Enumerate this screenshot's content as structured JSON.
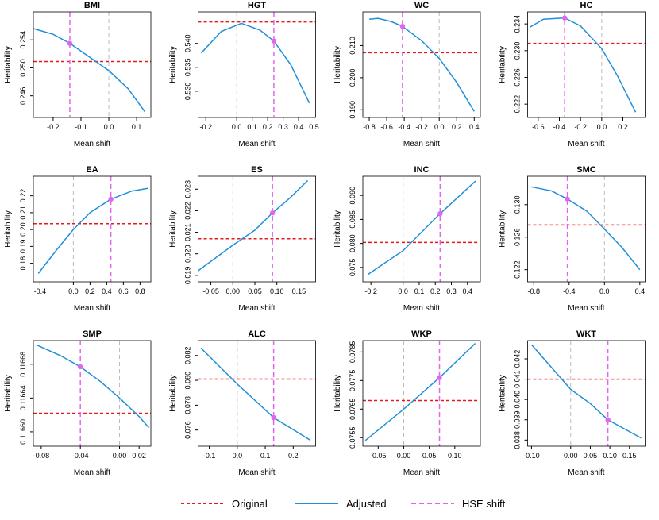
{
  "legend": [
    {
      "label": "Original",
      "color": "#e41a1c",
      "dash": "4,3"
    },
    {
      "label": "Adjusted",
      "color": "#1f8fd8",
      "dash": ""
    },
    {
      "label": "HSE shift",
      "color": "#e066ee",
      "dash": "6,4"
    }
  ],
  "reference_color": "#bbbbbb",
  "chart_data": [
    {
      "type": "line",
      "title": "BMI",
      "x_label": "Mean shift",
      "y_label": "Heritability",
      "xlim": [
        -0.271,
        0.151
      ],
      "ylim": [
        0.2429,
        0.258
      ],
      "xticks": [
        -0.2,
        -0.1,
        {
          "value": 0,
          "label": "0.0"
        },
        0.1
      ],
      "yticks": [
        0.246,
        {
          "value": 0.25,
          "label": "0.250"
        },
        0.254
      ],
      "x": [
        -0.27,
        -0.2,
        -0.14,
        -0.05,
        0,
        0.07,
        0.13
      ],
      "values": [
        0.2556,
        0.2548,
        0.2535,
        0.251,
        0.2496,
        0.247,
        0.2437
      ],
      "original": 0.2509,
      "reference_x": 0,
      "hse_x": -0.14,
      "hse_y": 0.2535
    },
    {
      "type": "line",
      "title": "HGT",
      "x_label": "Mean shift",
      "y_label": "Heritability",
      "xlim": [
        -0.25,
        0.51
      ],
      "ylim": [
        0.5245,
        0.5466
      ],
      "xticks": [
        -0.2,
        {
          "value": 0,
          "label": "0.0"
        },
        0.1,
        0.2,
        0.3,
        0.4,
        0.5
      ],
      "yticks": [
        {
          "value": 0.53,
          "label": "0.530"
        },
        0.535,
        {
          "value": 0.54,
          "label": "0.540"
        }
      ],
      "x": [
        -0.23,
        -0.1,
        0.03,
        0.15,
        0.24,
        0.35,
        0.47
      ],
      "values": [
        0.538,
        0.5425,
        0.5442,
        0.5428,
        0.5405,
        0.5355,
        0.5275
      ],
      "original": 0.5445,
      "reference_x": 0,
      "hse_x": 0.24,
      "hse_y": 0.5405
    },
    {
      "type": "line",
      "title": "WC",
      "x_label": "Mean shift",
      "y_label": "Heritability",
      "xlim": [
        -0.873,
        0.47
      ],
      "ylim": [
        0.1876,
        0.2205
      ],
      "xticks": [
        -0.8,
        -0.6,
        -0.4,
        -0.2,
        {
          "value": 0,
          "label": "0.0"
        },
        0.2,
        0.4
      ],
      "yticks": [
        {
          "value": 0.19,
          "label": "0.190"
        },
        {
          "value": 0.2,
          "label": "0.200"
        },
        {
          "value": 0.21,
          "label": "0.210"
        }
      ],
      "x": [
        -0.8,
        -0.7,
        -0.55,
        -0.42,
        -0.2,
        0,
        0.2,
        0.4
      ],
      "values": [
        0.2182,
        0.2185,
        0.2175,
        0.216,
        0.2115,
        0.206,
        0.1985,
        0.1895
      ],
      "original": 0.2078,
      "reference_x": 0,
      "hse_x": -0.42,
      "hse_y": 0.216
    },
    {
      "type": "line",
      "title": "HC",
      "x_label": "Mean shift",
      "y_label": "Heritability",
      "xlim": [
        -0.7,
        0.41
      ],
      "ylim": [
        0.22,
        0.2358
      ],
      "xticks": [
        -0.6,
        -0.4,
        -0.2,
        {
          "value": 0,
          "label": "0.0"
        },
        0.2
      ],
      "yticks": [
        0.222,
        0.226,
        {
          "value": 0.23,
          "label": "0.230"
        },
        0.234
      ],
      "x": [
        -0.68,
        -0.55,
        -0.35,
        -0.2,
        0,
        0.15,
        0.32
      ],
      "values": [
        0.2335,
        0.2347,
        0.2349,
        0.2337,
        0.2303,
        0.2262,
        0.2208
      ],
      "original": 0.2311,
      "reference_x": 0,
      "hse_x": -0.35,
      "hse_y": 0.2349
    },
    {
      "type": "line",
      "title": "EA",
      "x_label": "Mean shift",
      "y_label": "Heritability",
      "xlim": [
        -0.48,
        0.93
      ],
      "ylim": [
        0.169,
        0.2316
      ],
      "xticks": [
        -0.4,
        {
          "value": 0,
          "label": "0.0"
        },
        0.2,
        0.4,
        0.6,
        0.8
      ],
      "yticks": [
        0.18,
        0.19,
        {
          "value": 0.2,
          "label": "0.20"
        },
        0.21,
        0.22
      ],
      "x": [
        -0.42,
        -0.2,
        0,
        0.2,
        0.45,
        0.7,
        0.9
      ],
      "values": [
        0.174,
        0.188,
        0.2,
        0.21,
        0.218,
        0.2228,
        0.2245
      ],
      "original": 0.2035,
      "reference_x": 0,
      "hse_x": 0.45,
      "hse_y": 0.218
    },
    {
      "type": "line",
      "title": "ES",
      "x_label": "Mean shift",
      "y_label": "Heritability",
      "xlim": [
        -0.079,
        0.188
      ],
      "ylim": [
        0.0187,
        0.0236
      ],
      "xticks": [
        -0.05,
        {
          "value": 0,
          "label": "0.00"
        },
        0.05,
        {
          "value": 0.1,
          "label": "0.10"
        },
        0.15
      ],
      "yticks": [
        0.019,
        {
          "value": 0.02,
          "label": "0.020"
        },
        0.021,
        0.022,
        0.023
      ],
      "x": [
        -0.08,
        -0.04,
        0,
        0.05,
        0.09,
        0.13,
        0.17
      ],
      "values": [
        0.0192,
        0.0198,
        0.0204,
        0.0211,
        0.0219,
        0.0226,
        0.0234
      ],
      "original": 0.0207,
      "reference_x": 0,
      "hse_x": 0.09,
      "hse_y": 0.0219
    },
    {
      "type": "line",
      "title": "INC",
      "x_label": "Mean shift",
      "y_label": "Heritability",
      "xlim": [
        -0.25,
        0.48
      ],
      "ylim": [
        0.072,
        0.094
      ],
      "xticks": [
        -0.2,
        {
          "value": 0,
          "label": "0.0"
        },
        0.1,
        0.2,
        0.3,
        0.4
      ],
      "yticks": [
        0.075,
        {
          "value": 0.08,
          "label": "0.080"
        },
        0.085,
        {
          "value": 0.09,
          "label": "0.090"
        }
      ],
      "x": [
        -0.22,
        0,
        0.23,
        0.45
      ],
      "values": [
        0.0735,
        0.0785,
        0.0862,
        0.093
      ],
      "original": 0.0802,
      "reference_x": 0,
      "hse_x": 0.23,
      "hse_y": 0.0862
    },
    {
      "type": "line",
      "title": "SMC",
      "x_label": "Mean shift",
      "y_label": "Heritability",
      "xlim": [
        -0.87,
        0.46
      ],
      "ylim": [
        0.1205,
        0.1335
      ],
      "xticks": [
        -0.8,
        -0.4,
        {
          "value": 0,
          "label": "0.0"
        },
        0.4
      ],
      "yticks": [
        0.122,
        0.126,
        {
          "value": 0.13,
          "label": "0.130"
        }
      ],
      "x": [
        -0.83,
        -0.6,
        -0.42,
        -0.2,
        0,
        0.2,
        0.4
      ],
      "values": [
        0.1322,
        0.1317,
        0.1307,
        0.1292,
        0.127,
        0.1247,
        0.122
      ],
      "original": 0.1275,
      "reference_x": 0,
      "hse_x": -0.42,
      "hse_y": 0.1307
    },
    {
      "type": "line",
      "title": "SMP",
      "x_label": "Mean shift",
      "y_label": "Heritability",
      "xlim": [
        -0.088,
        0.032
      ],
      "ylim": [
        0.116583,
        0.116708
      ],
      "xticks": [
        -0.08,
        -0.04,
        {
          "value": 0,
          "label": "0.00"
        },
        0.02
      ],
      "yticks": [
        {
          "value": 0.1166,
          "label": "0.11660"
        },
        0.11664,
        0.11668
      ],
      "x": [
        -0.085,
        -0.06,
        -0.04,
        -0.02,
        0,
        0.02,
        0.03
      ],
      "values": [
        0.116703,
        0.11669,
        0.116677,
        0.11666,
        0.11664,
        0.116618,
        0.116605
      ],
      "original": 0.116622,
      "reference_x": 0,
      "hse_x": -0.04,
      "hse_y": 0.116677
    },
    {
      "type": "line",
      "title": "ALC",
      "x_label": "Mean shift",
      "y_label": "Heritability",
      "xlim": [
        -0.14,
        0.28
      ],
      "ylim": [
        0.0747,
        0.0832
      ],
      "xticks": [
        -0.1,
        {
          "value": 0,
          "label": "0.0"
        },
        0.1,
        0.2
      ],
      "yticks": [
        0.076,
        0.078,
        {
          "value": 0.08,
          "label": "0.080"
        },
        0.082
      ],
      "x": [
        -0.13,
        0,
        0.13,
        0.26
      ],
      "values": [
        0.0826,
        0.0797,
        0.077,
        0.0752
      ],
      "original": 0.0801,
      "reference_x": 0,
      "hse_x": 0.13,
      "hse_y": 0.077
    },
    {
      "type": "line",
      "title": "WKP",
      "x_label": "Mean shift",
      "y_label": "Heritability",
      "xlim": [
        -0.08,
        0.15
      ],
      "ylim": [
        0.0752,
        0.0789
      ],
      "xticks": [
        -0.05,
        {
          "value": 0,
          "label": "0.00"
        },
        0.05,
        {
          "value": 0.1,
          "label": "0.10"
        }
      ],
      "yticks": [
        0.0755,
        0.0765,
        0.0775,
        0.0785
      ],
      "x": [
        -0.075,
        0,
        0.07,
        0.14
      ],
      "values": [
        0.0754,
        0.0765,
        0.0776,
        0.0788
      ],
      "original": 0.0768,
      "reference_x": 0,
      "hse_x": 0.07,
      "hse_y": 0.0776
    },
    {
      "type": "line",
      "title": "WKT",
      "x_label": "Mean shift",
      "y_label": "Heritability",
      "xlim": [
        -0.11,
        0.19
      ],
      "ylim": [
        0.0377,
        0.0429
      ],
      "xticks": [
        {
          "value": -0.1,
          "label": "-0.10"
        },
        {
          "value": 0,
          "label": "0.00"
        },
        0.05,
        {
          "value": 0.1,
          "label": "0.10"
        },
        0.15
      ],
      "yticks": [
        0.038,
        0.039,
        {
          "value": 0.04,
          "label": "0.040"
        },
        0.041,
        0.042
      ],
      "x": [
        -0.1,
        0,
        0.05,
        0.095,
        0.18
      ],
      "values": [
        0.0427,
        0.0405,
        0.0398,
        0.039,
        0.0381
      ],
      "original": 0.041,
      "reference_x": 0,
      "hse_x": 0.095,
      "hse_y": 0.039
    }
  ]
}
